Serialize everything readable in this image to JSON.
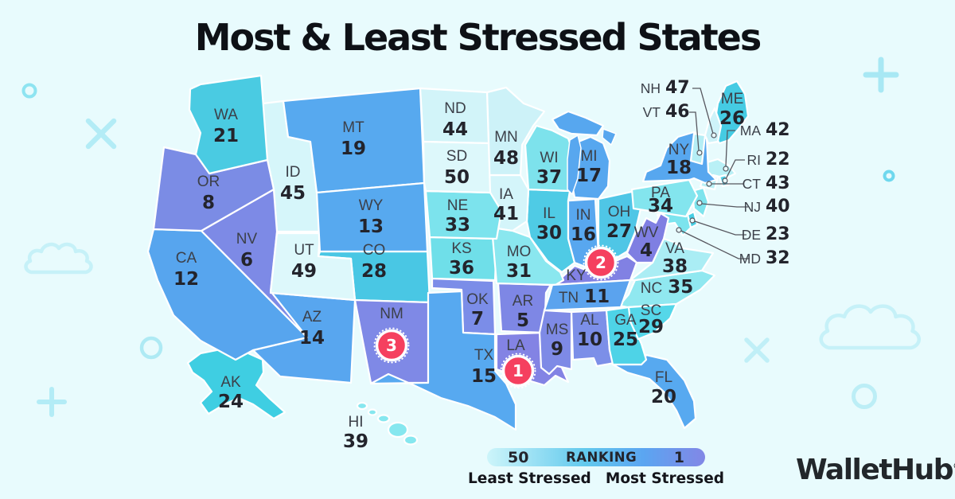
{
  "title": "Most & Least Stressed States",
  "brand": {
    "name": "WalletHub",
    "mark": "®"
  },
  "badge_color": "#f5405f",
  "legend": {
    "min_value": "50",
    "label": "RANKING",
    "max_value": "1",
    "min_caption": "Least Stressed",
    "max_caption": "Most Stressed",
    "gradient": [
      "#cdf5fa",
      "#62c9ed",
      "#5ba5f1",
      "#8287e6"
    ]
  },
  "chart_data": {
    "type": "heatmap",
    "title": "Most & Least Stressed States",
    "value_label": "Stress ranking (1 = Most Stressed, 50 = Least Stressed)",
    "range": [
      1,
      50
    ],
    "categories": [
      "AL",
      "AK",
      "AZ",
      "AR",
      "CA",
      "CO",
      "CT",
      "DE",
      "FL",
      "GA",
      "HI",
      "ID",
      "IL",
      "IN",
      "IA",
      "KS",
      "KY",
      "LA",
      "ME",
      "MD",
      "MA",
      "MI",
      "MN",
      "MS",
      "MO",
      "MT",
      "NE",
      "NV",
      "NH",
      "NJ",
      "NM",
      "NY",
      "NC",
      "ND",
      "OH",
      "OK",
      "OR",
      "PA",
      "RI",
      "SC",
      "SD",
      "TN",
      "TX",
      "UT",
      "VT",
      "VA",
      "WA",
      "WV",
      "WI",
      "WY"
    ],
    "values": [
      10,
      24,
      14,
      5,
      12,
      28,
      43,
      23,
      20,
      25,
      39,
      45,
      30,
      16,
      41,
      36,
      2,
      1,
      26,
      32,
      42,
      17,
      48,
      9,
      31,
      19,
      33,
      6,
      47,
      40,
      3,
      18,
      35,
      44,
      27,
      7,
      8,
      34,
      22,
      29,
      50,
      11,
      15,
      49,
      46,
      38,
      21,
      4,
      37,
      13
    ]
  },
  "map": {
    "states": [
      {
        "abbr": "AL",
        "rank": 10,
        "color": "#7c8fe8"
      },
      {
        "abbr": "AK",
        "rank": 24,
        "color": "#3fcee2"
      },
      {
        "abbr": "AZ",
        "rank": 14,
        "color": "#58a6ef"
      },
      {
        "abbr": "AR",
        "rank": 5,
        "color": "#7e87e5"
      },
      {
        "abbr": "CA",
        "rank": 12,
        "color": "#57a5ee"
      },
      {
        "abbr": "CO",
        "rank": 28,
        "color": "#49c7e4"
      },
      {
        "abbr": "CT",
        "rank": 43,
        "color": "#baf0f6"
      },
      {
        "abbr": "DE",
        "rank": 23,
        "color": "#47cfe4"
      },
      {
        "abbr": "FL",
        "rank": 20,
        "color": "#57a9f0"
      },
      {
        "abbr": "GA",
        "rank": 25,
        "color": "#4ed3e7"
      },
      {
        "abbr": "HI",
        "rank": 39,
        "color": "#86e7ef"
      },
      {
        "abbr": "ID",
        "rank": 45,
        "color": "#d6f6fa"
      },
      {
        "abbr": "IL",
        "rank": 30,
        "color": "#4fcbe5"
      },
      {
        "abbr": "IN",
        "rank": 16,
        "color": "#58a7ef"
      },
      {
        "abbr": "IA",
        "rank": 41,
        "color": "#d4f5fa"
      },
      {
        "abbr": "KS",
        "rank": 36,
        "color": "#6fdfe9"
      },
      {
        "abbr": "KY",
        "rank": 2,
        "color": "#8181e3",
        "badge": true
      },
      {
        "abbr": "LA",
        "rank": 1,
        "color": "#8383e4",
        "badge": true
      },
      {
        "abbr": "ME",
        "rank": 26,
        "color": "#45cbe3"
      },
      {
        "abbr": "MD",
        "rank": 32,
        "color": "#7ce4ee"
      },
      {
        "abbr": "MA",
        "rank": 42,
        "color": "#b9f0f6"
      },
      {
        "abbr": "MI",
        "rank": 17,
        "color": "#57a7ef"
      },
      {
        "abbr": "MN",
        "rank": 48,
        "color": "#cdf2f8"
      },
      {
        "abbr": "MS",
        "rank": 9,
        "color": "#7e8ae6"
      },
      {
        "abbr": "MO",
        "rank": 31,
        "color": "#8ae7ef"
      },
      {
        "abbr": "MT",
        "rank": 19,
        "color": "#57a9ef"
      },
      {
        "abbr": "NE",
        "rank": 33,
        "color": "#7ce3ed"
      },
      {
        "abbr": "NV",
        "rank": 6,
        "color": "#7d8ae6"
      },
      {
        "abbr": "NH",
        "rank": 47,
        "color": "#cef3f9"
      },
      {
        "abbr": "NJ",
        "rank": 40,
        "color": "#7ee4ed"
      },
      {
        "abbr": "NM",
        "rank": 3,
        "color": "#7f89e6",
        "badge": true
      },
      {
        "abbr": "NY",
        "rank": 18,
        "color": "#57a7ef"
      },
      {
        "abbr": "NC",
        "rank": 35,
        "color": "#90e8f0"
      },
      {
        "abbr": "ND",
        "rank": 44,
        "color": "#d2f4f9"
      },
      {
        "abbr": "OH",
        "rank": 27,
        "color": "#4fc6e6"
      },
      {
        "abbr": "OK",
        "rank": 7,
        "color": "#7b8de8"
      },
      {
        "abbr": "OR",
        "rank": 8,
        "color": "#7b8ce5"
      },
      {
        "abbr": "PA",
        "rank": 34,
        "color": "#83e5ee"
      },
      {
        "abbr": "RI",
        "rank": 22,
        "color": "#4fd0e6"
      },
      {
        "abbr": "SC",
        "rank": 29,
        "color": "#55d7e9"
      },
      {
        "abbr": "SD",
        "rank": 50,
        "color": "#ddf8fb"
      },
      {
        "abbr": "TN",
        "rank": 11,
        "color": "#5ba3ee"
      },
      {
        "abbr": "TX",
        "rank": 15,
        "color": "#57a9f0"
      },
      {
        "abbr": "UT",
        "rank": 49,
        "color": "#ddf8fb"
      },
      {
        "abbr": "VT",
        "rank": 46,
        "color": "#b5eef5"
      },
      {
        "abbr": "VA",
        "rank": 38,
        "color": "#aaedf4"
      },
      {
        "abbr": "WA",
        "rank": 21,
        "color": "#4acbe2"
      },
      {
        "abbr": "WV",
        "rank": 4,
        "color": "#7f7fe2"
      },
      {
        "abbr": "WI",
        "rank": 37,
        "color": "#7de2ec"
      },
      {
        "abbr": "WY",
        "rank": 13,
        "color": "#57a9ef"
      }
    ]
  }
}
